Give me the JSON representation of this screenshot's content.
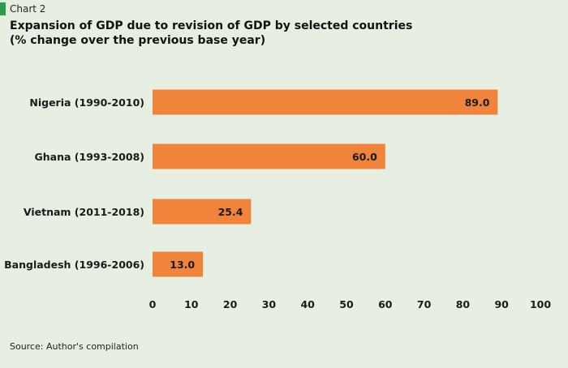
{
  "header": {
    "chart_label": "Chart 2",
    "accent_color": "#2e9b4f"
  },
  "chart_data": {
    "type": "bar",
    "orientation": "horizontal",
    "title": "Expansion of GDP due to revision of GDP by selected countries",
    "subtitle": "(% change over the previous base year)",
    "categories": [
      "Nigeria (1990-2010)",
      "Ghana (1993-2008)",
      "Vietnam (2011-2018)",
      "Bangladesh (1996-2006)"
    ],
    "values": [
      89.0,
      60.0,
      25.4,
      13.0
    ],
    "data_labels": [
      "89.0",
      "60.0",
      "25.4",
      "13.0"
    ],
    "xlim": [
      0,
      100
    ],
    "xticks": [
      0,
      10,
      20,
      30,
      40,
      50,
      60,
      70,
      80,
      90,
      100
    ],
    "grid": false,
    "bar_color": "#f0843a",
    "background_color": "#e6efe1"
  },
  "footer": {
    "source": "Source: Author's compilation"
  }
}
